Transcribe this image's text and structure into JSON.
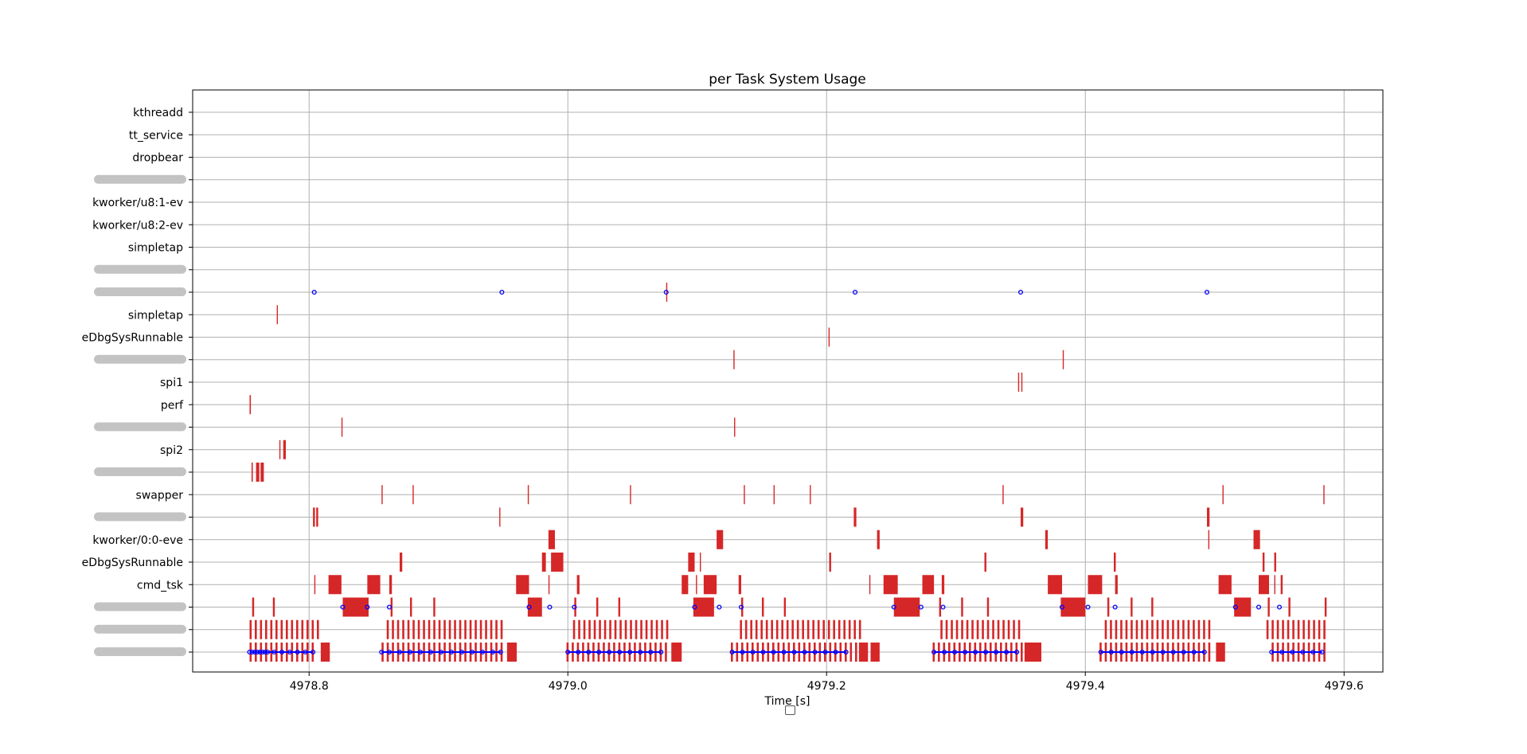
{
  "chart_data": {
    "type": "gantt",
    "title": "per Task System Usage",
    "xlabel": "Time [s]",
    "ylabel": "",
    "xlim": [
      4978.71,
      4979.63
    ],
    "xticks": [
      4978.8,
      4979.0,
      4979.2,
      4979.4,
      4979.6
    ],
    "xtick_labels": [
      "4978.8",
      "4979.0",
      "4979.2",
      "4979.4",
      "4979.6"
    ],
    "grid": true,
    "colors": {
      "bar": "#d62728",
      "marker": "#0000ff",
      "grid": "#b0b0b0"
    },
    "tasks": [
      "kthreadd",
      "tt_service",
      "dropbear",
      "",
      "kworker/u8:1-ev",
      "kworker/u8:2-ev",
      "simpletap",
      "",
      "",
      "simpletap",
      "eDbgSysRunnable",
      "",
      "spi1",
      "perf",
      "",
      "spi2",
      "",
      "swapper",
      "",
      "kworker/0:0-eve",
      "eDbgSysRunnable",
      "cmd_tsk",
      "",
      "",
      ""
    ],
    "blurred_rows": [
      3,
      7,
      8,
      11,
      14,
      16,
      18,
      22,
      23,
      24
    ],
    "bars": [
      {
        "row": 8,
        "segments": [
          [
            4979.076,
            0.0008
          ]
        ]
      },
      {
        "row": 9,
        "segments": [
          [
            4978.775,
            0.0008
          ]
        ]
      },
      {
        "row": 10,
        "segments": [
          [
            4979.2015,
            0.0008
          ]
        ]
      },
      {
        "row": 11,
        "segments": [
          [
            4979.128,
            0.0008
          ],
          [
            4979.3825,
            0.0008
          ]
        ]
      },
      {
        "row": 12,
        "segments": [
          [
            4979.348,
            0.0008
          ],
          [
            4979.3505,
            0.0008
          ]
        ]
      },
      {
        "row": 13,
        "segments": [
          [
            4978.754,
            0.001
          ]
        ]
      },
      {
        "row": 14,
        "segments": [
          [
            4978.825,
            0.0008
          ],
          [
            4979.1285,
            0.0008
          ]
        ]
      },
      {
        "row": 15,
        "segments": [
          [
            4978.777,
            0.0008
          ],
          [
            4978.78,
            0.002
          ]
        ]
      },
      {
        "row": 16,
        "segments": [
          [
            4978.7555,
            0.001
          ],
          [
            4978.759,
            0.0025
          ],
          [
            4978.7625,
            0.0025
          ]
        ]
      },
      {
        "row": 17,
        "segments": [
          [
            4978.856,
            0.0008
          ],
          [
            4978.88,
            0.0008
          ],
          [
            4978.969,
            0.0008
          ],
          [
            4979.048,
            0.0008
          ],
          [
            4979.136,
            0.0008
          ],
          [
            4979.159,
            0.0008
          ],
          [
            4979.187,
            0.0008
          ],
          [
            4979.336,
            0.0008
          ],
          [
            4979.506,
            0.0008
          ],
          [
            4979.584,
            0.0008
          ]
        ]
      },
      {
        "row": 18,
        "segments": [
          [
            4978.803,
            0.0015
          ],
          [
            4978.8055,
            0.0015
          ],
          [
            4978.947,
            0.0008
          ],
          [
            4979.221,
            0.002
          ],
          [
            4979.35,
            0.002
          ],
          [
            4979.494,
            0.002
          ]
        ]
      },
      {
        "row": 19,
        "segments": [
          [
            4978.985,
            0.005
          ],
          [
            4979.115,
            0.005
          ],
          [
            4979.239,
            0.002
          ],
          [
            4979.369,
            0.002
          ],
          [
            4979.495,
            0.0008
          ],
          [
            4979.53,
            0.005
          ]
        ]
      },
      {
        "row": 20,
        "segments": [
          [
            4978.87,
            0.002
          ],
          [
            4978.98,
            0.003
          ],
          [
            4978.987,
            0.0095
          ],
          [
            4979.093,
            0.005
          ],
          [
            4979.102,
            0.0008
          ],
          [
            4979.202,
            0.0015
          ],
          [
            4979.322,
            0.0015
          ],
          [
            4979.422,
            0.0015
          ],
          [
            4979.537,
            0.0015
          ],
          [
            4979.546,
            0.0015
          ]
        ]
      },
      {
        "row": 21,
        "segments": [
          [
            4978.804,
            0.0008
          ],
          [
            4978.815,
            0.01
          ],
          [
            4978.845,
            0.01
          ],
          [
            4978.862,
            0.002
          ],
          [
            4978.96,
            0.01
          ],
          [
            4978.985,
            0.0008
          ],
          [
            4979.007,
            0.002
          ],
          [
            4979.088,
            0.005
          ],
          [
            4979.099,
            0.0008
          ],
          [
            4979.105,
            0.01
          ],
          [
            4979.132,
            0.002
          ],
          [
            4979.233,
            0.0008
          ],
          [
            4979.244,
            0.011
          ],
          [
            4979.274,
            0.009
          ],
          [
            4979.289,
            0.002
          ],
          [
            4979.371,
            0.011
          ],
          [
            4979.402,
            0.011
          ],
          [
            4979.423,
            0.002
          ],
          [
            4979.503,
            0.01
          ],
          [
            4979.534,
            0.008
          ],
          [
            4979.546,
            0.0008
          ],
          [
            4979.551,
            0.0015
          ]
        ]
      },
      {
        "row": 22,
        "segments": [
          [
            4978.756,
            0.0015
          ],
          [
            4978.772,
            0.0015
          ],
          [
            4978.826,
            0.02
          ],
          [
            4978.863,
            0.0015
          ],
          [
            4978.878,
            0.0015
          ],
          [
            4978.896,
            0.0015
          ],
          [
            4978.969,
            0.011
          ],
          [
            4979.005,
            0.0015
          ],
          [
            4979.022,
            0.0015
          ],
          [
            4979.039,
            0.0015
          ],
          [
            4979.097,
            0.016
          ],
          [
            4979.134,
            0.0015
          ],
          [
            4979.15,
            0.0015
          ],
          [
            4979.167,
            0.0015
          ],
          [
            4979.252,
            0.02
          ],
          [
            4979.287,
            0.0015
          ],
          [
            4979.304,
            0.0015
          ],
          [
            4979.324,
            0.0015
          ],
          [
            4979.381,
            0.019
          ],
          [
            4979.417,
            0.0015
          ],
          [
            4979.435,
            0.0015
          ],
          [
            4979.451,
            0.0015
          ],
          [
            4979.515,
            0.013
          ],
          [
            4979.541,
            0.0015
          ],
          [
            4979.557,
            0.0015
          ],
          [
            4979.585,
            0.0015
          ]
        ]
      },
      {
        "row": 23,
        "fill": [
          4978.754,
          4978.808,
          0.0022
        ],
        "segments": []
      },
      {
        "row": 23,
        "fill": [
          4978.86,
          4978.95,
          0.0022
        ],
        "segments": []
      },
      {
        "row": 23,
        "fill": [
          4979.004,
          4979.078,
          0.0022
        ],
        "segments": []
      },
      {
        "row": 23,
        "fill": [
          4979.133,
          4979.226,
          0.0022
        ],
        "segments": []
      },
      {
        "row": 23,
        "fill": [
          4979.288,
          4979.35,
          0.0022
        ],
        "segments": []
      },
      {
        "row": 23,
        "fill": [
          4979.415,
          4979.498,
          0.0022
        ],
        "segments": []
      },
      {
        "row": 23,
        "fill": [
          4979.54,
          4979.586,
          0.0022
        ],
        "segments": []
      },
      {
        "row": 24,
        "fill": [
          4978.754,
          4978.805,
          0.0025
        ],
        "segments": [
          [
            4978.809,
            0.007
          ]
        ]
      },
      {
        "row": 24,
        "fill": [
          4978.856,
          4978.95,
          0.0025
        ],
        "segments": [
          [
            4978.953,
            0.0075
          ]
        ]
      },
      {
        "row": 24,
        "fill": [
          4978.999,
          4979.078,
          0.0025
        ],
        "segments": [
          [
            4979.08,
            0.008
          ]
        ]
      },
      {
        "row": 24,
        "fill": [
          4979.126,
          4979.222,
          0.0025
        ],
        "segments": [
          [
            4979.225,
            0.007
          ],
          [
            4979.234,
            0.007
          ]
        ]
      },
      {
        "row": 24,
        "fill": [
          4979.282,
          4979.352,
          0.0025
        ],
        "segments": [
          [
            4979.353,
            0.013
          ]
        ]
      },
      {
        "row": 24,
        "fill": [
          4979.411,
          4979.498,
          0.0025
        ],
        "segments": [
          [
            4979.501,
            0.007
          ]
        ]
      },
      {
        "row": 24,
        "fill": [
          4979.544,
          4979.584,
          0.0025
        ],
        "segments": []
      }
    ],
    "markers": [
      {
        "row": 8,
        "x": [
          4978.804,
          4978.949,
          4979.076,
          4979.222,
          4979.35,
          4979.494
        ]
      },
      {
        "row": 22,
        "x": [
          4978.826,
          4978.845,
          4978.862,
          4978.97,
          4978.986,
          4979.005,
          4979.098,
          4979.117,
          4979.134,
          4979.252,
          4979.273,
          4979.29,
          4979.382,
          4979.402,
          4979.423,
          4979.516,
          4979.534,
          4979.55
        ]
      },
      {
        "row": 24,
        "x": [
          4978.754,
          4978.756,
          4978.758,
          4978.76,
          4978.762,
          4978.764,
          4978.766,
          4978.768,
          4978.773,
          4978.779,
          4978.785,
          4978.791,
          4978.797,
          4978.803,
          4978.856,
          4978.862,
          4978.87,
          4978.878,
          4978.886,
          4978.894,
          4978.902,
          4978.91,
          4978.918,
          4978.926,
          4978.934,
          4978.942,
          4978.948,
          4979.0,
          4979.008,
          4979.016,
          4979.024,
          4979.032,
          4979.04,
          4979.048,
          4979.056,
          4979.064,
          4979.072,
          4979.127,
          4979.135,
          4979.143,
          4979.151,
          4979.159,
          4979.167,
          4979.175,
          4979.183,
          4979.191,
          4979.199,
          4979.207,
          4979.215,
          4979.283,
          4979.291,
          4979.299,
          4979.307,
          4979.315,
          4979.323,
          4979.331,
          4979.339,
          4979.347,
          4979.412,
          4979.42,
          4979.428,
          4979.436,
          4979.444,
          4979.452,
          4979.46,
          4979.468,
          4979.476,
          4979.484,
          4979.492,
          4979.544,
          4979.552,
          4979.56,
          4979.568,
          4979.576,
          4979.583
        ]
      }
    ],
    "dense_ticks": [
      {
        "row": 23,
        "ranges": [
          [
            4978.754,
            4978.808,
            0.004
          ],
          [
            4978.86,
            4978.95,
            0.004
          ],
          [
            4979.004,
            4979.078,
            0.004
          ],
          [
            4979.133,
            4979.226,
            0.004
          ],
          [
            4979.288,
            4979.35,
            0.004
          ],
          [
            4979.415,
            4979.498,
            0.004
          ],
          [
            4979.54,
            4979.586,
            0.004
          ]
        ]
      },
      {
        "row": 24,
        "ranges": [
          [
            4978.754,
            4978.805,
            0.004
          ],
          [
            4978.856,
            4978.95,
            0.004
          ],
          [
            4978.999,
            4979.078,
            0.004
          ],
          [
            4979.126,
            4979.222,
            0.004
          ],
          [
            4979.282,
            4979.352,
            0.004
          ],
          [
            4979.411,
            4979.498,
            0.004
          ],
          [
            4979.544,
            4979.584,
            0.004
          ]
        ]
      }
    ]
  }
}
